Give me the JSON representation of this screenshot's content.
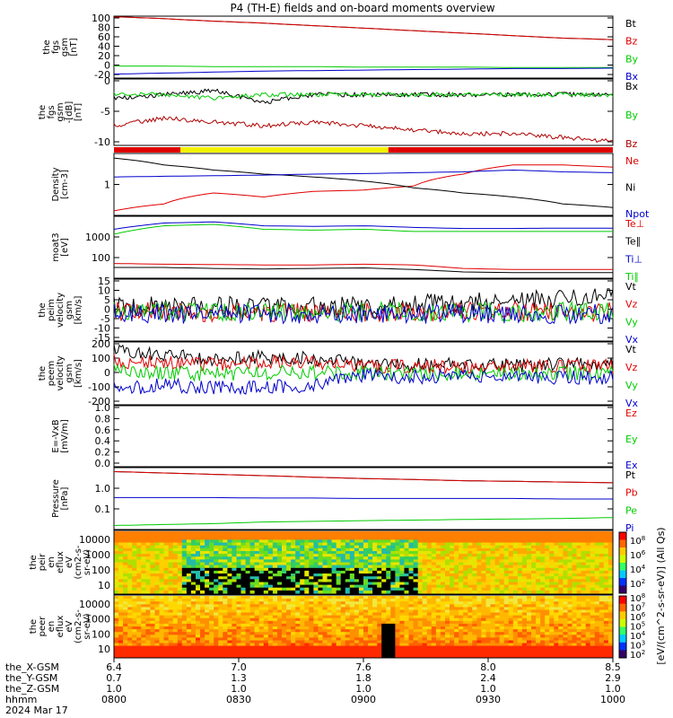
{
  "title": "P4 (TH-E) fields and on-board moments overview",
  "colors": {
    "black": "#000000",
    "red": "#e00000",
    "green": "#00cc00",
    "blue": "#0000cc",
    "darkred": "#b00000",
    "yellow": "#f2f200"
  },
  "chart_data": [
    {
      "type": "line",
      "ylabel": [
        "the",
        "fgs",
        "gsm",
        "[nT]"
      ],
      "yticks": [
        "100",
        "80",
        "60",
        "40",
        "20",
        "0",
        "-20"
      ],
      "ylim": [
        -22,
        102
      ],
      "series": [
        {
          "name": "Bt",
          "color": "#000000",
          "values": [
            101,
            97,
            92,
            88,
            83,
            78,
            73,
            68,
            63,
            58,
            55
          ]
        },
        {
          "name": "Bz",
          "color": "#e00000",
          "values": [
            101,
            97,
            92,
            88,
            83,
            78,
            73,
            68,
            63,
            58,
            55
          ]
        },
        {
          "name": "By",
          "color": "#00cc00",
          "values": [
            2,
            2,
            1,
            1,
            1,
            0,
            0,
            0,
            -1,
            -1,
            -1
          ]
        },
        {
          "name": "Bx",
          "color": "#0000cc",
          "values": [
            -14,
            -12,
            -10,
            -8,
            -7,
            -6,
            -5,
            -4,
            -3,
            -3,
            -2
          ]
        }
      ]
    },
    {
      "type": "line",
      "ylabel": [
        "the",
        "fgs",
        "gsm",
        "-[dB]",
        "[nT]"
      ],
      "yticks": [
        "0",
        "-5",
        "-10"
      ],
      "ylim": [
        -13,
        4
      ],
      "series": [
        {
          "name": "Bx",
          "color": "#000000",
          "values": [
            -1,
            0,
            1,
            -2,
            0,
            0,
            0,
            0,
            0,
            0,
            0
          ]
        },
        {
          "name": "By",
          "color": "#00cc00",
          "values": [
            0,
            0,
            -1,
            0,
            0,
            0,
            0,
            0,
            0,
            0,
            0
          ]
        },
        {
          "name": "Bz",
          "color": "#b00000",
          "values": [
            -8,
            -6,
            -7,
            -8,
            -7,
            -8,
            -9,
            -10,
            -10,
            -11,
            -12
          ]
        }
      ],
      "flag_bar": [
        {
          "from": "0800",
          "to": "0816",
          "color": "#e00000"
        },
        {
          "from": "0816",
          "to": "0906",
          "color": "#f2f200"
        },
        {
          "from": "0906",
          "to": "1000",
          "color": "#e00000"
        }
      ]
    },
    {
      "type": "line",
      "ylabel": [
        "Density",
        "[cm-3]"
      ],
      "yticks": [
        "1"
      ],
      "scale": "log",
      "series": [
        {
          "name": "Ne",
          "color": "#e00000",
          "values": [
            0.05,
            0.1,
            0.3,
            0.2,
            0.35,
            0.4,
            0.6,
            2,
            5,
            5,
            4
          ]
        },
        {
          "name": "Ni",
          "color": "#000000",
          "values": [
            10,
            5,
            3,
            2,
            1.5,
            1,
            0.5,
            0.3,
            0.2,
            0.1,
            0.07
          ]
        },
        {
          "name": "Npot",
          "color": "#0000cc",
          "values": [
            1.5,
            1.6,
            1.7,
            1.8,
            2,
            2.1,
            2.3,
            2.5,
            3,
            2.5,
            2.3
          ]
        }
      ]
    },
    {
      "type": "line",
      "ylabel": [
        "moat3",
        "[eV]"
      ],
      "yticks": [
        "1000",
        "100"
      ],
      "scale": "log",
      "series": [
        {
          "name": "Te⊥",
          "color": "#e00000",
          "values": [
            180,
            170,
            165,
            160,
            160,
            170,
            160,
            120,
            110,
            110,
            110
          ]
        },
        {
          "name": "Te∥",
          "color": "#000000",
          "values": [
            130,
            130,
            120,
            115,
            120,
            125,
            110,
            90,
            85,
            85,
            85
          ]
        },
        {
          "name": "Ti⊥",
          "color": "#0000cc",
          "values": [
            3000,
            5000,
            5500,
            4000,
            3800,
            4000,
            3500,
            3200,
            3200,
            3300,
            3300
          ]
        },
        {
          "name": "Ti∥",
          "color": "#00cc00",
          "values": [
            2000,
            4000,
            4500,
            3000,
            2800,
            3000,
            2500,
            2500,
            2500,
            2500,
            2500
          ]
        }
      ]
    },
    {
      "type": "line",
      "ylabel": [
        "the",
        "peim",
        "velocity",
        "gsm",
        "[km/s]"
      ],
      "yticks": [
        "15",
        "10",
        "5",
        "0",
        "-5",
        "-10",
        "-15"
      ],
      "ylim": [
        -16,
        18
      ],
      "series": [
        {
          "name": "Vt",
          "color": "#000000",
          "values": [
            3,
            3,
            3,
            3,
            3,
            3,
            4,
            5,
            6,
            7,
            8
          ]
        },
        {
          "name": "Vz",
          "color": "#e00000",
          "values": [
            0,
            0,
            0,
            0,
            0,
            0,
            0,
            0,
            0,
            0,
            0
          ]
        },
        {
          "name": "Vy",
          "color": "#00cc00",
          "values": [
            0,
            0,
            0,
            0,
            0,
            0,
            0,
            0,
            0,
            0,
            0
          ]
        },
        {
          "name": "Vx",
          "color": "#0000cc",
          "values": [
            -1,
            -1,
            -1,
            -1,
            -1,
            -1,
            -1,
            -1,
            -1,
            -1,
            -1
          ]
        }
      ]
    },
    {
      "type": "line",
      "ylabel": [
        "the",
        "peem",
        "velocity",
        "gsm",
        "[km/s]"
      ],
      "yticks": [
        "200",
        "100",
        "0",
        "-100",
        "-200"
      ],
      "ylim": [
        -230,
        220
      ],
      "series": [
        {
          "name": "Vt",
          "color": "#000000",
          "values": [
            150,
            130,
            100,
            110,
            100,
            60,
            55,
            55,
            55,
            60,
            60
          ]
        },
        {
          "name": "Vz",
          "color": "#e00000",
          "values": [
            80,
            70,
            60,
            80,
            70,
            50,
            45,
            45,
            45,
            45,
            45
          ]
        },
        {
          "name": "Vy",
          "color": "#00cc00",
          "values": [
            10,
            0,
            -10,
            0,
            0,
            0,
            -5,
            -5,
            -5,
            -5,
            -5
          ]
        },
        {
          "name": "Vx",
          "color": "#0000cc",
          "values": [
            -120,
            -90,
            -110,
            -100,
            -90,
            -20,
            -30,
            -30,
            -30,
            -35,
            -35
          ]
        }
      ]
    },
    {
      "type": "line",
      "ylabel": [
        "E=-VxB",
        "[mV/m]"
      ],
      "yticks": [
        "1.0",
        "0.8",
        "0.6",
        "0.4",
        "0.2",
        "0.0"
      ],
      "ylim": [
        0,
        1
      ],
      "series": [
        {
          "name": "Ez",
          "color": "#e00000",
          "values": []
        },
        {
          "name": "Ey",
          "color": "#00cc00",
          "values": []
        },
        {
          "name": "Ex",
          "color": "#0000cc",
          "values": []
        }
      ]
    },
    {
      "type": "line",
      "ylabel": [
        "Pressure",
        "[nPa]"
      ],
      "yticks": [
        "1.0",
        "0.1"
      ],
      "scale": "log",
      "series": [
        {
          "name": "Pt",
          "color": "#000000",
          "values": [
            4,
            3.4,
            2.9,
            2.5,
            2.1,
            1.8,
            1.6,
            1.4,
            1.3,
            1.2,
            1.1
          ]
        },
        {
          "name": "Pb",
          "color": "#e00000",
          "values": [
            4,
            3.4,
            2.9,
            2.5,
            2.1,
            1.8,
            1.6,
            1.4,
            1.3,
            1.2,
            1.1
          ]
        },
        {
          "name": "Pe",
          "color": "#00cc00",
          "values": [
            0.008,
            0.009,
            0.01,
            0.012,
            0.013,
            0.014,
            0.015,
            0.016,
            0.017,
            0.018,
            0.02
          ]
        },
        {
          "name": "Pi",
          "color": "#0000cc",
          "values": [
            0.2,
            0.2,
            0.2,
            0.19,
            0.19,
            0.18,
            0.18,
            0.18,
            0.18,
            0.17,
            0.17
          ]
        }
      ]
    },
    {
      "type": "heatmap",
      "ylabel": [
        "the",
        "peir",
        "en",
        "eflux",
        "eV",
        "(cm2-s-",
        "sr-eV)"
      ],
      "yticks": [
        "10000",
        "1000",
        "100",
        "10"
      ]
    },
    {
      "type": "heatmap",
      "ylabel": [
        "the",
        "peer",
        "en",
        "eflux",
        "eV",
        "(cm2-s-",
        "sr-eV)"
      ],
      "yticks": [
        "10000",
        "1000",
        "100",
        "10"
      ]
    }
  ],
  "colorbar": {
    "label": "[eV/(cm^2-s-sr-eV)] (All Qs)",
    "ticks_upper": [
      "10^8",
      "10^6",
      "10^4",
      "10^2"
    ],
    "ticks_lower": [
      "10^8",
      "10^7",
      "10^6",
      "10^5",
      "10^4",
      "10^3",
      "10^2"
    ]
  },
  "xaxis": {
    "rows": [
      {
        "label": "the_X-GSM",
        "values": [
          "6.4",
          "7.0",
          "7.6",
          "8.0",
          "8.5"
        ]
      },
      {
        "label": "the_Y-GSM",
        "values": [
          "0.7",
          "1.3",
          "1.8",
          "2.4",
          "2.9"
        ]
      },
      {
        "label": "the_Z-GSM",
        "values": [
          "1.0",
          "1.0",
          "1.0",
          "1.0",
          "1.0"
        ]
      },
      {
        "label": "hhmm",
        "values": [
          "0800",
          "0830",
          "0900",
          "0930",
          "1000"
        ]
      }
    ],
    "date": "2024 Mar 17"
  }
}
